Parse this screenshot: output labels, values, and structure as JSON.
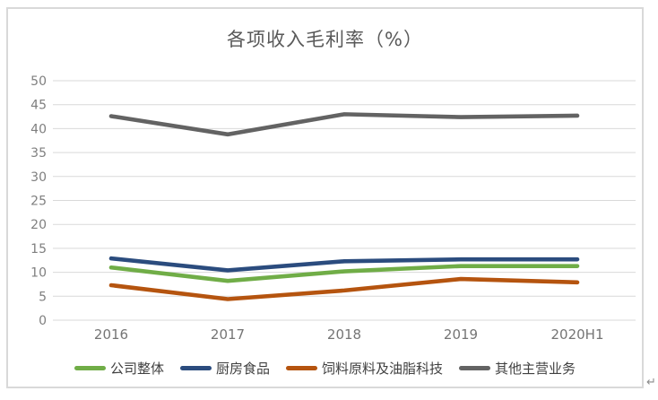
{
  "page": {
    "line_break_mark": "↵"
  },
  "chart_data": {
    "type": "line",
    "title": "各项收入毛利率（%）",
    "xlabel": "",
    "ylabel": "",
    "categories": [
      "2016",
      "2017",
      "2018",
      "2019",
      "2020H1"
    ],
    "series": [
      {
        "name": "公司整体",
        "color": "#70AD47",
        "values": [
          11.0,
          8.2,
          10.2,
          11.3,
          11.3
        ]
      },
      {
        "name": "厨房食品",
        "color": "#2B4C7E",
        "values": [
          12.9,
          10.4,
          12.3,
          12.7,
          12.7
        ]
      },
      {
        "name": "饲料原料及油脂科技",
        "color": "#B5540F",
        "values": [
          7.3,
          4.4,
          6.2,
          8.6,
          7.9
        ]
      },
      {
        "name": "其他主营业务",
        "color": "#636363",
        "values": [
          42.6,
          38.8,
          43.0,
          42.4,
          42.7
        ]
      }
    ],
    "ylim": [
      0,
      50
    ],
    "ytick_step": 5,
    "grid": "horizontal",
    "legend_position": "bottom",
    "colors": {
      "grid": "#D9D9D9",
      "frame_border": "#D9D9D9",
      "title_text": "#595959",
      "ytick_text": "#7F7F7F",
      "xtick_text": "#757575",
      "legend_text": "#404040",
      "background": "#ffffff"
    }
  }
}
